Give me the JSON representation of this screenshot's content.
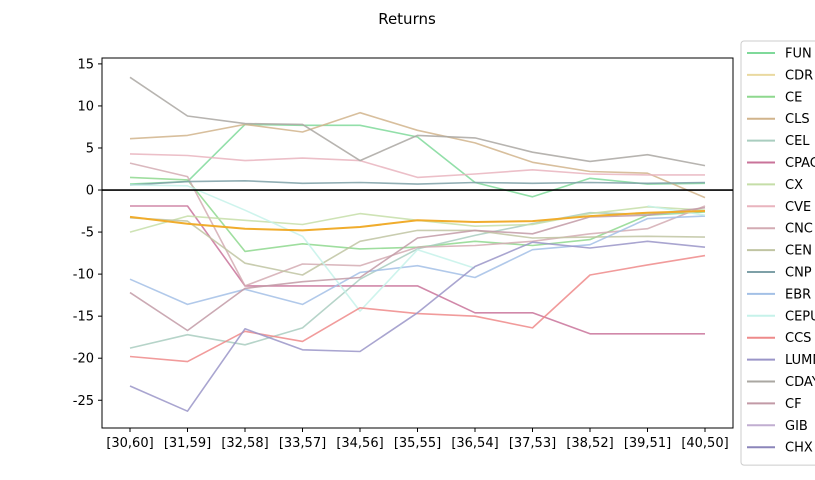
{
  "chart_data": {
    "type": "line",
    "title": "Returns",
    "xlabel": "",
    "ylabel": "",
    "categories": [
      "[30,60]",
      "[31,59]",
      "[32,58]",
      "[33,57]",
      "[34,56]",
      "[35,55]",
      "[36,54]",
      "[37,53]",
      "[38,52]",
      "[39,51]",
      "[40,50]"
    ],
    "ylim": [
      -28.3,
      15.7
    ],
    "yticks": [
      15,
      10,
      5,
      0,
      -5,
      -10,
      -15,
      -20,
      -25
    ],
    "zero_line": true,
    "grid": false,
    "legend_position": "right",
    "series": [
      {
        "name": "FUN",
        "color": "#7fd99a",
        "values": [
          0.7,
          1.0,
          7.8,
          7.7,
          7.7,
          6.3,
          0.9,
          -0.8,
          1.4,
          0.7,
          0.8
        ]
      },
      {
        "name": "CDR",
        "color": "#ead9a0",
        "values": [
          null,
          null,
          null,
          null,
          null,
          null,
          null,
          null,
          null,
          null,
          null
        ]
      },
      {
        "name": "CE",
        "color": "#8ed88e",
        "values": [
          1.5,
          1.2,
          -7.3,
          -6.4,
          -7.0,
          -6.8,
          -6.1,
          -6.6,
          -5.9,
          -3.0,
          -2.6
        ]
      },
      {
        "name": "CLS",
        "color": "#d1b48c",
        "values": [
          6.1,
          6.5,
          7.8,
          6.9,
          9.2,
          7.1,
          5.6,
          3.3,
          2.2,
          2.0,
          -0.9
        ]
      },
      {
        "name": "CEL",
        "color": "#a9cdbf",
        "values": [
          -18.8,
          -17.2,
          -18.4,
          -16.4,
          -10.6,
          -7.0,
          -5.4,
          -4.0,
          -2.7,
          -2.9,
          -2.5
        ]
      },
      {
        "name": "CPAC",
        "color": "#c9739a",
        "values": [
          -1.9,
          -1.9,
          -11.4,
          -11.4,
          -11.4,
          -11.4,
          -14.6,
          -14.6,
          -17.1,
          -17.1,
          -17.1
        ]
      },
      {
        "name": "CX",
        "color": "#c5dea8",
        "values": [
          -5.0,
          -3.1,
          -3.6,
          -4.1,
          -2.8,
          -3.6,
          -4.3,
          -4.1,
          -2.8,
          -2.0,
          -2.4
        ]
      },
      {
        "name": "CVE",
        "color": "#e9b4be",
        "values": [
          4.3,
          4.1,
          3.5,
          3.8,
          3.5,
          1.5,
          1.9,
          2.4,
          1.9,
          1.8,
          1.8
        ]
      },
      {
        "name": "CNC",
        "color": "#d3abb3",
        "values": [
          3.2,
          1.6,
          -11.4,
          -8.8,
          -9.0,
          -6.8,
          -6.6,
          -6.1,
          -5.2,
          -4.6,
          -1.9
        ]
      },
      {
        "name": "CEN",
        "color": "#c0c4a2",
        "values": [
          -3.3,
          -3.7,
          -8.7,
          -10.1,
          -6.1,
          -4.8,
          -4.8,
          -5.7,
          -5.6,
          -5.5,
          -5.6
        ]
      },
      {
        "name": "CNP",
        "color": "#7ea0a7",
        "values": [
          0.6,
          1.0,
          1.1,
          0.8,
          0.9,
          0.7,
          0.9,
          0.8,
          0.9,
          0.8,
          0.9
        ]
      },
      {
        "name": "EBR",
        "color": "#a3c0e6",
        "values": [
          -10.6,
          -13.6,
          -11.8,
          -13.6,
          -9.8,
          -9.0,
          -10.4,
          -7.1,
          -6.5,
          -3.4,
          -3.1
        ]
      },
      {
        "name": "CEPU",
        "color": "#c6f2ea",
        "values": [
          0.6,
          0.5,
          -2.4,
          -5.5,
          -14.4,
          -7.1,
          -9.3,
          null,
          null,
          -1.9,
          -3.0
        ]
      },
      {
        "name": "CCS",
        "color": "#ee8a8a",
        "values": [
          -19.8,
          -20.4,
          -16.8,
          -18.0,
          -14.0,
          -14.7,
          -15.0,
          -16.4,
          -10.1,
          -8.9,
          -7.8
        ]
      },
      {
        "name": "LUMN",
        "color": "#9a95c8",
        "values": [
          -23.3,
          -26.3,
          -16.5,
          -19.0,
          -19.2,
          -14.6,
          -9.1,
          -6.2,
          -6.9,
          -6.1,
          -6.8
        ]
      },
      {
        "name": "CDAY",
        "color": "#aaa7a2",
        "values": [
          13.4,
          8.8,
          7.9,
          7.8,
          3.5,
          6.5,
          6.2,
          4.5,
          3.4,
          4.2,
          2.9
        ]
      },
      {
        "name": "CF",
        "color": "#c29aa6",
        "values": [
          -12.2,
          -16.7,
          -11.7,
          -10.9,
          -10.4,
          -5.7,
          -4.8,
          -5.2,
          -3.2,
          -3.0,
          -2.1
        ]
      },
      {
        "name": "GIB",
        "color": "#c1aed1",
        "values": [
          null,
          null,
          null,
          null,
          null,
          null,
          null,
          null,
          null,
          null,
          null
        ]
      },
      {
        "name": "CHX",
        "color": "#8b85ba",
        "values": [
          null,
          null,
          null,
          null,
          null,
          null,
          null,
          null,
          null,
          null,
          null
        ]
      },
      {
        "name": "",
        "color": "#f0ac2c",
        "values": [
          -3.2,
          -4.0,
          -4.6,
          -4.8,
          -4.4,
          -3.6,
          -3.8,
          -3.7,
          -3.1,
          -2.7,
          -2.5
        ],
        "in_legend": false
      }
    ]
  }
}
